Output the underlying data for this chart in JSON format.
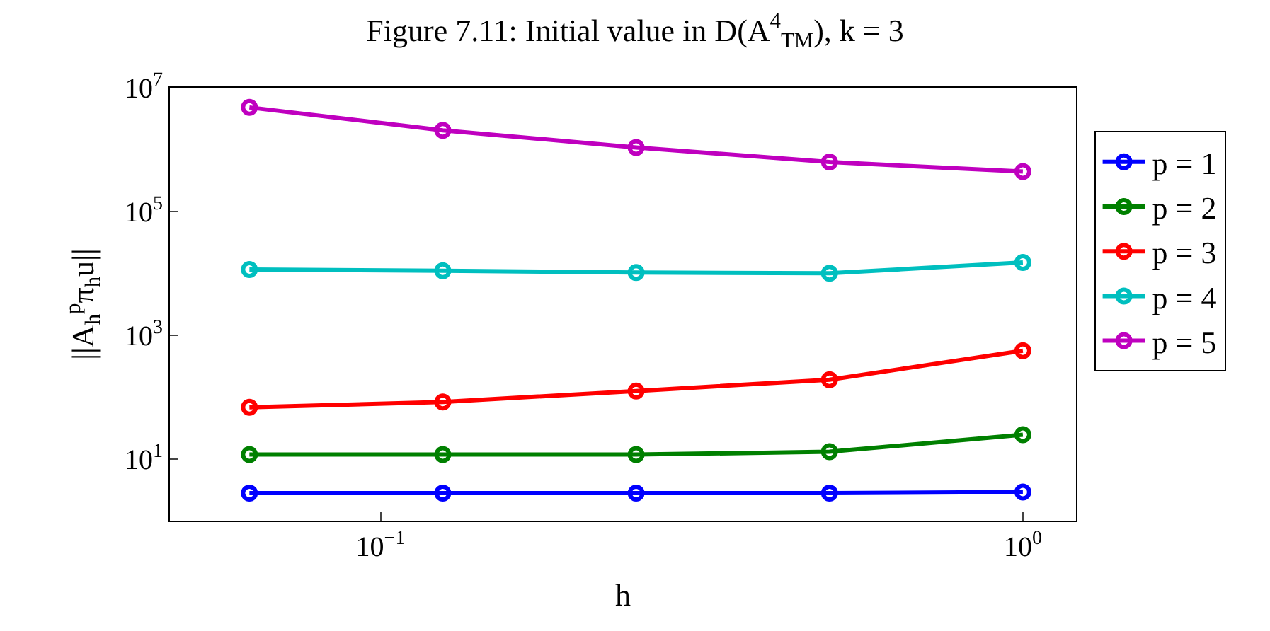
{
  "chart_data": {
    "type": "line",
    "title": "Figure 7.11: Initial value in D(A$^{4}$$_{TM}$), k = 3",
    "xlabel": "h",
    "ylabel": "||A$_{h}$$^{p}$π$_{h}$u||",
    "x": [
      0.0625,
      0.125,
      0.25,
      0.5,
      1
    ],
    "series": [
      {
        "name": "p = 1",
        "color": "#0000ff",
        "values": [
          2.8,
          2.8,
          2.8,
          2.8,
          2.9
        ]
      },
      {
        "name": "p = 2",
        "color": "#008000",
        "values": [
          11.7,
          11.7,
          11.7,
          13,
          24.5
        ]
      },
      {
        "name": "p = 3",
        "color": "#ff0000",
        "values": [
          68,
          83,
          125,
          190,
          560
        ]
      },
      {
        "name": "p = 4",
        "color": "#00bfbf",
        "values": [
          11500,
          11000,
          10300,
          10000,
          15000
        ]
      },
      {
        "name": "p = 5",
        "color": "#bf00bf",
        "values": [
          4800000,
          2050000,
          1080000,
          630000,
          440000
        ]
      }
    ],
    "log": "xy",
    "xlim": [
      0.047,
      1.21
    ],
    "ylim": [
      1,
      10000000
    ],
    "xticks": [
      {
        "value": 0.1,
        "label": "10$^{−1}$"
      },
      {
        "value": 1,
        "label": "10$^{0}$"
      }
    ],
    "yticks": [
      {
        "value": 10,
        "label": "10$^{1}$"
      },
      {
        "value": 1000,
        "label": "10$^{3}$"
      },
      {
        "value": 100000,
        "label": "10$^{5}$"
      },
      {
        "value": 10000000,
        "label": "10$^{7}$"
      }
    ],
    "grid": false,
    "legend": "top right",
    "marker": "circle",
    "line_style": "solid"
  }
}
